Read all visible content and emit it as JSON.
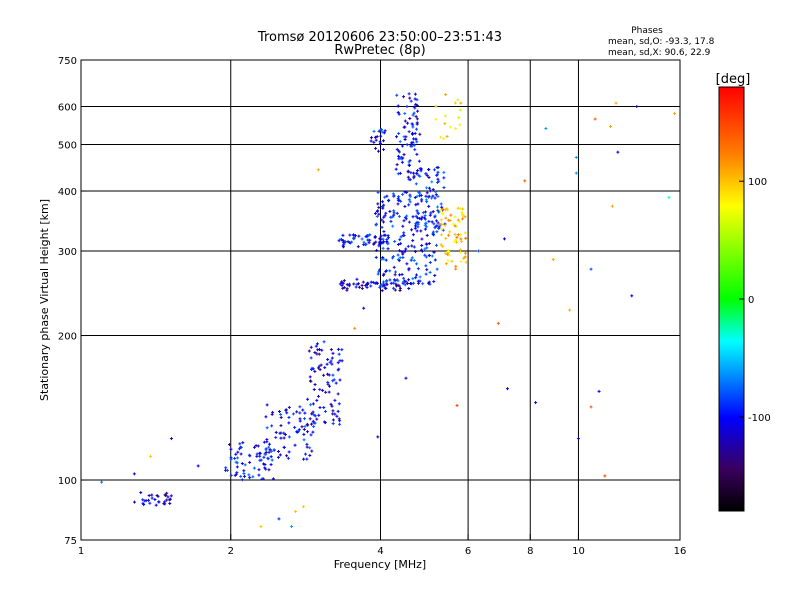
{
  "chart_data": {
    "type": "scatter",
    "title": "Tromsø 20120606 23:50:00–23:51:43",
    "subtitle": "RwPretec (8p)",
    "xlabel": "Frequency [MHz]",
    "ylabel": "Stationary phase Virtual Height [km]",
    "x_scale": "log",
    "y_scale": "log",
    "xlim": [
      1,
      16
    ],
    "ylim": [
      75,
      750
    ],
    "x_ticks": [
      1,
      2,
      4,
      6,
      8,
      10,
      16
    ],
    "x_tick_labels": [
      "1",
      "2",
      "4",
      "6",
      "8",
      "10",
      "16"
    ],
    "y_ticks": [
      75,
      100,
      200,
      300,
      400,
      500,
      600,
      750
    ],
    "y_tick_labels": [
      "75",
      "100",
      "200",
      "300",
      "400",
      "500",
      "600",
      "750"
    ],
    "grid": true,
    "stats": {
      "title": "Phases",
      "line1": "mean, sd,O: -93.3, 17.8",
      "line2": "mean, sd,X: 90.6, 22.9"
    },
    "colorbar": {
      "label": "[deg]",
      "min": -180,
      "max": 180,
      "ticks": [
        100,
        0,
        -100
      ],
      "tick_labels": [
        "100",
        "0",
        "-100"
      ]
    },
    "clusters": [
      {
        "id": "e-region",
        "fmin": 1.28,
        "fmax": 1.52,
        "hmin": 88,
        "hmax": 95,
        "phase": -112,
        "count": 30
      },
      {
        "id": "f1-trace-low",
        "fmin": 1.95,
        "fmax": 2.45,
        "hmin": 100,
        "hmax": 120,
        "phase": -100,
        "count": 70
      },
      {
        "id": "f1-trace-mid",
        "fmin": 2.35,
        "fmax": 2.95,
        "hmin": 110,
        "hmax": 145,
        "phase": -100,
        "count": 80
      },
      {
        "id": "f1-trace-high",
        "fmin": 2.85,
        "fmax": 3.35,
        "hmin": 130,
        "hmax": 195,
        "phase": -110,
        "count": 90
      },
      {
        "id": "f2-flat",
        "fmin": 3.3,
        "fmax": 4.6,
        "hmin": 248,
        "hmax": 262,
        "phase": -115,
        "count": 60
      },
      {
        "id": "f2-band-o",
        "fmin": 3.3,
        "fmax": 4.2,
        "hmin": 305,
        "hmax": 325,
        "phase": -100,
        "count": 60
      },
      {
        "id": "f2-cusp-o",
        "fmin": 3.9,
        "fmax": 5.2,
        "hmin": 255,
        "hmax": 400,
        "phase": -95,
        "count": 220
      },
      {
        "id": "f2-high-o",
        "fmin": 4.3,
        "fmax": 4.8,
        "hmin": 420,
        "hmax": 640,
        "phase": -100,
        "count": 90
      },
      {
        "id": "f2-mid-o",
        "fmin": 4.7,
        "fmax": 5.4,
        "hmin": 330,
        "hmax": 450,
        "phase": -95,
        "count": 70
      },
      {
        "id": "f2-x-cusp",
        "fmin": 5.25,
        "fmax": 5.95,
        "hmin": 275,
        "hmax": 370,
        "phase": 100,
        "count": 70
      },
      {
        "id": "f2-x-high",
        "fmin": 5.1,
        "fmax": 5.8,
        "hmin": 460,
        "hmax": 640,
        "phase": 90,
        "count": 15
      },
      {
        "id": "upper-cusp",
        "fmin": 3.8,
        "fmax": 4.1,
        "hmin": 480,
        "hmax": 540,
        "phase": -100,
        "count": 20
      }
    ],
    "points": [
      {
        "x": 1.1,
        "y": 99,
        "phase": -70
      },
      {
        "x": 1.28,
        "y": 103,
        "phase": -100
      },
      {
        "x": 1.38,
        "y": 112,
        "phase": 100
      },
      {
        "x": 1.52,
        "y": 122,
        "phase": -110
      },
      {
        "x": 1.72,
        "y": 107,
        "phase": -100
      },
      {
        "x": 2.3,
        "y": 80,
        "phase": 100
      },
      {
        "x": 2.5,
        "y": 83,
        "phase": -90
      },
      {
        "x": 2.65,
        "y": 80,
        "phase": -60
      },
      {
        "x": 2.7,
        "y": 86,
        "phase": 100
      },
      {
        "x": 2.8,
        "y": 88,
        "phase": 100
      },
      {
        "x": 3.0,
        "y": 443,
        "phase": 110
      },
      {
        "x": 3.55,
        "y": 207,
        "phase": 120
      },
      {
        "x": 3.7,
        "y": 228,
        "phase": -100
      },
      {
        "x": 3.95,
        "y": 123,
        "phase": -110
      },
      {
        "x": 4.5,
        "y": 163,
        "phase": -100
      },
      {
        "x": 5.7,
        "y": 143,
        "phase": 150
      },
      {
        "x": 5.8,
        "y": 610,
        "phase": 110
      },
      {
        "x": 6.3,
        "y": 300,
        "phase": -80
      },
      {
        "x": 6.9,
        "y": 212,
        "phase": 140
      },
      {
        "x": 7.1,
        "y": 318,
        "phase": -100
      },
      {
        "x": 7.2,
        "y": 155,
        "phase": -100
      },
      {
        "x": 7.8,
        "y": 420,
        "phase": 140
      },
      {
        "x": 8.2,
        "y": 145,
        "phase": -100
      },
      {
        "x": 8.6,
        "y": 540,
        "phase": -60
      },
      {
        "x": 8.9,
        "y": 288,
        "phase": 110
      },
      {
        "x": 9.6,
        "y": 226,
        "phase": 110
      },
      {
        "x": 9.9,
        "y": 470,
        "phase": -60
      },
      {
        "x": 9.9,
        "y": 436,
        "phase": -60
      },
      {
        "x": 10.0,
        "y": 122,
        "phase": -110
      },
      {
        "x": 10.6,
        "y": 275,
        "phase": -80
      },
      {
        "x": 10.6,
        "y": 142,
        "phase": 140
      },
      {
        "x": 10.8,
        "y": 565,
        "phase": 140
      },
      {
        "x": 11.0,
        "y": 153,
        "phase": -100
      },
      {
        "x": 11.3,
        "y": 102,
        "phase": 150
      },
      {
        "x": 11.6,
        "y": 545,
        "phase": 110
      },
      {
        "x": 11.9,
        "y": 610,
        "phase": 110
      },
      {
        "x": 11.7,
        "y": 372,
        "phase": 110
      },
      {
        "x": 12.0,
        "y": 482,
        "phase": -100
      },
      {
        "x": 12.8,
        "y": 242,
        "phase": -110
      },
      {
        "x": 13.1,
        "y": 600,
        "phase": -110
      },
      {
        "x": 15.2,
        "y": 388,
        "phase": -30
      },
      {
        "x": 15.6,
        "y": 580,
        "phase": 110
      }
    ]
  }
}
